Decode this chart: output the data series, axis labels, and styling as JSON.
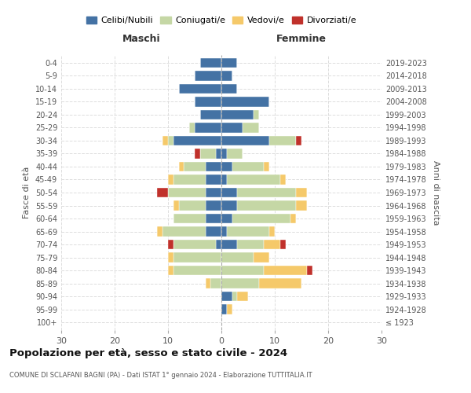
{
  "age_groups": [
    "100+",
    "95-99",
    "90-94",
    "85-89",
    "80-84",
    "75-79",
    "70-74",
    "65-69",
    "60-64",
    "55-59",
    "50-54",
    "45-49",
    "40-44",
    "35-39",
    "30-34",
    "25-29",
    "20-24",
    "15-19",
    "10-14",
    "5-9",
    "0-4"
  ],
  "birth_years": [
    "≤ 1923",
    "1924-1928",
    "1929-1933",
    "1934-1938",
    "1939-1943",
    "1944-1948",
    "1949-1953",
    "1954-1958",
    "1959-1963",
    "1964-1968",
    "1969-1973",
    "1974-1978",
    "1979-1983",
    "1984-1988",
    "1989-1993",
    "1994-1998",
    "1999-2003",
    "2004-2008",
    "2009-2013",
    "2014-2018",
    "2019-2023"
  ],
  "colors": {
    "celibi": "#4472a4",
    "coniugati": "#c5d7a5",
    "vedovi": "#f5c96a",
    "divorziati": "#c0312b"
  },
  "maschi": {
    "celibi": [
      0,
      0,
      0,
      0,
      0,
      0,
      1,
      3,
      3,
      3,
      3,
      3,
      3,
      1,
      9,
      5,
      4,
      5,
      8,
      5,
      4
    ],
    "coniugati": [
      0,
      0,
      0,
      2,
      9,
      9,
      8,
      8,
      6,
      5,
      7,
      6,
      4,
      3,
      1,
      1,
      0,
      0,
      0,
      0,
      0
    ],
    "vedovi": [
      0,
      0,
      0,
      1,
      1,
      1,
      0,
      1,
      0,
      1,
      0,
      1,
      1,
      0,
      1,
      0,
      0,
      0,
      0,
      0,
      0
    ],
    "divorziati": [
      0,
      0,
      0,
      0,
      0,
      0,
      1,
      0,
      0,
      0,
      2,
      0,
      0,
      1,
      0,
      0,
      0,
      0,
      0,
      0,
      0
    ]
  },
  "femmine": {
    "celibi": [
      0,
      1,
      2,
      0,
      0,
      0,
      3,
      1,
      2,
      3,
      3,
      1,
      2,
      1,
      9,
      4,
      6,
      9,
      3,
      2,
      3
    ],
    "coniugati": [
      0,
      0,
      1,
      7,
      8,
      6,
      5,
      8,
      11,
      11,
      11,
      10,
      6,
      3,
      5,
      3,
      1,
      0,
      0,
      0,
      0
    ],
    "vedovi": [
      0,
      1,
      2,
      8,
      8,
      3,
      3,
      1,
      1,
      2,
      2,
      1,
      1,
      0,
      0,
      0,
      0,
      0,
      0,
      0,
      0
    ],
    "divorziati": [
      0,
      0,
      0,
      0,
      1,
      0,
      1,
      0,
      0,
      0,
      0,
      0,
      0,
      0,
      1,
      0,
      0,
      0,
      0,
      0,
      0
    ]
  },
  "xlim": 30,
  "title": "Popolazione per età, sesso e stato civile - 2024",
  "subtitle": "COMUNE DI SCLAFANI BAGNI (PA) - Dati ISTAT 1° gennaio 2024 - Elaborazione TUTTITALIA.IT",
  "ylabel_left": "Fasce di età",
  "ylabel_right": "Anni di nascita",
  "xlabel_left": "Maschi",
  "xlabel_right": "Femmine",
  "legend_labels": [
    "Celibi/Nubili",
    "Coniugati/e",
    "Vedovi/e",
    "Divorziati/e"
  ]
}
